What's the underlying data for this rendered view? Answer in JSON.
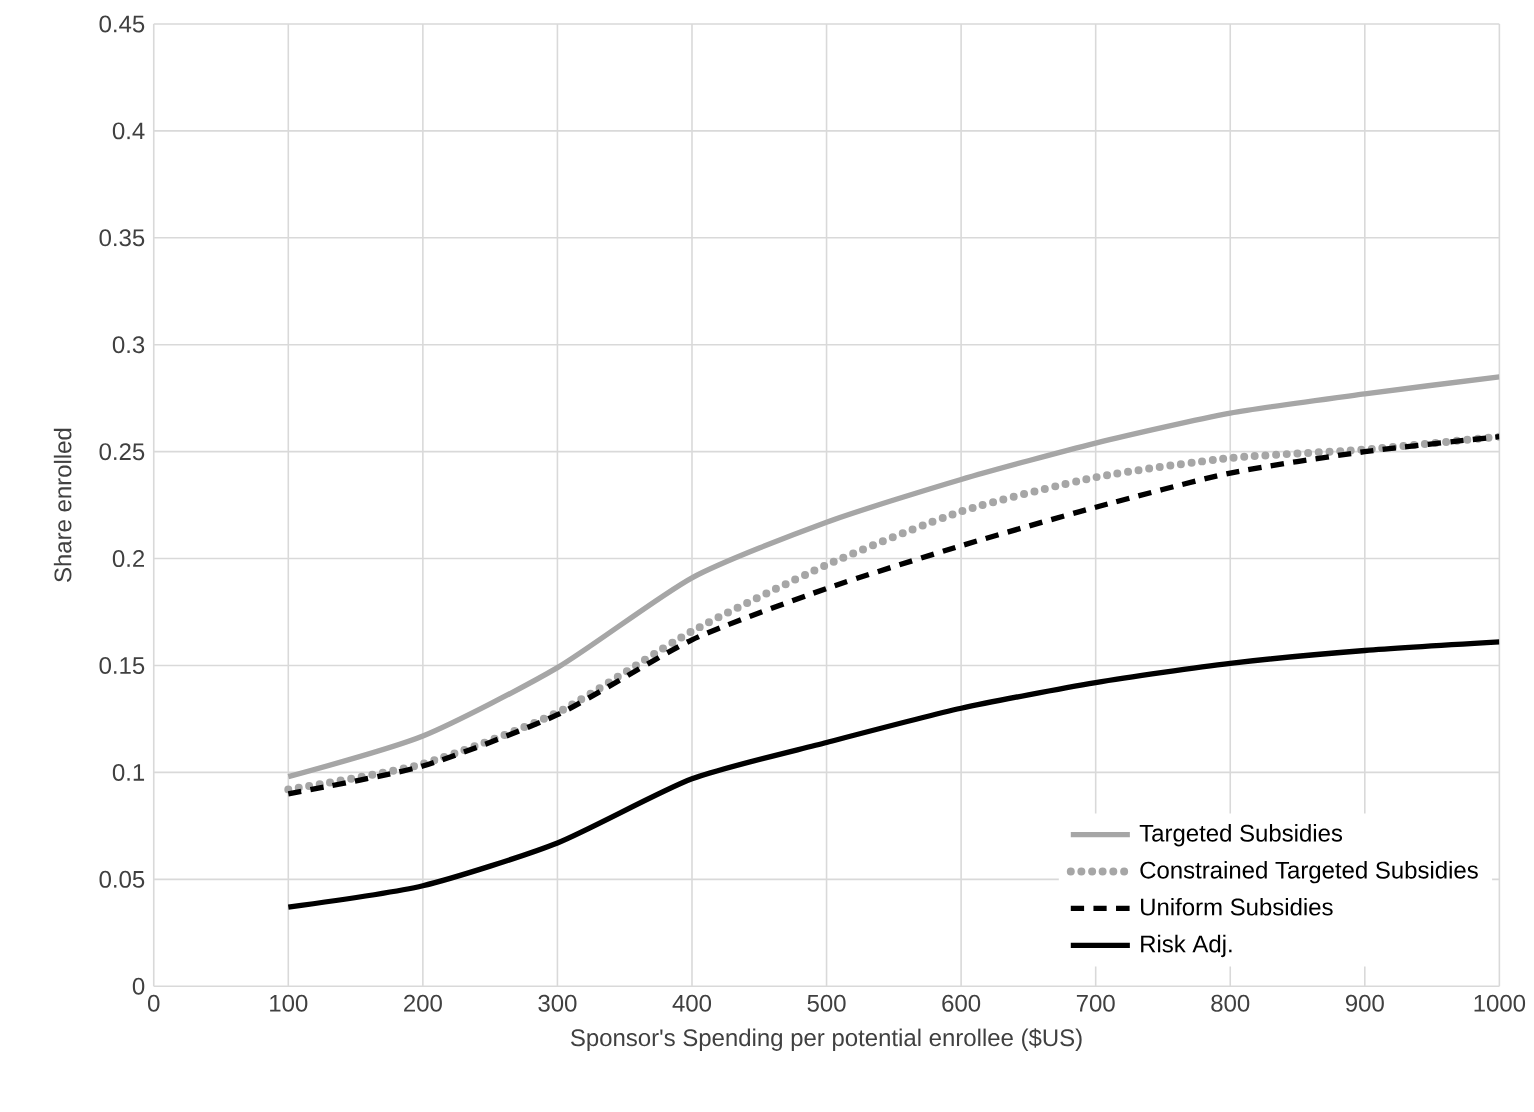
{
  "chart_data": {
    "type": "line",
    "xlabel": "Sponsor's Spending per potential enrollee ($US)",
    "ylabel": "Share enrolled",
    "x": [
      100,
      200,
      300,
      400,
      500,
      600,
      700,
      800,
      900,
      1000
    ],
    "series": [
      {
        "name": "Targeted Subsidies",
        "color": "#a6a6a6",
        "line_style": "solid",
        "values": [
          0.098,
          0.117,
          0.149,
          0.191,
          0.217,
          0.237,
          0.254,
          0.268,
          0.277,
          0.285
        ]
      },
      {
        "name": "Constrained Targeted Subsidies",
        "color": "#a6a6a6",
        "line_style": "dotted",
        "values": [
          0.092,
          0.104,
          0.128,
          0.166,
          0.197,
          0.222,
          0.238,
          0.247,
          0.251,
          0.257
        ]
      },
      {
        "name": "Uniform Subsidies",
        "color": "#000000",
        "line_style": "dashed",
        "values": [
          0.09,
          0.103,
          0.127,
          0.162,
          0.186,
          0.206,
          0.224,
          0.24,
          0.25,
          0.257
        ]
      },
      {
        "name": "Risk Adj.",
        "color": "#000000",
        "line_style": "solid",
        "values": [
          0.037,
          0.047,
          0.067,
          0.097,
          0.114,
          0.13,
          0.142,
          0.151,
          0.157,
          0.161
        ]
      }
    ],
    "xlim": [
      0,
      1000
    ],
    "xticks": [
      0,
      100,
      200,
      300,
      400,
      500,
      600,
      700,
      800,
      900,
      1000
    ],
    "ylim": [
      0,
      0.45
    ],
    "yticks": [
      0,
      0.05,
      0.1,
      0.15,
      0.2,
      0.25,
      0.3,
      0.35,
      0.4,
      0.45
    ],
    "grid": true,
    "legend": "bottom right"
  }
}
